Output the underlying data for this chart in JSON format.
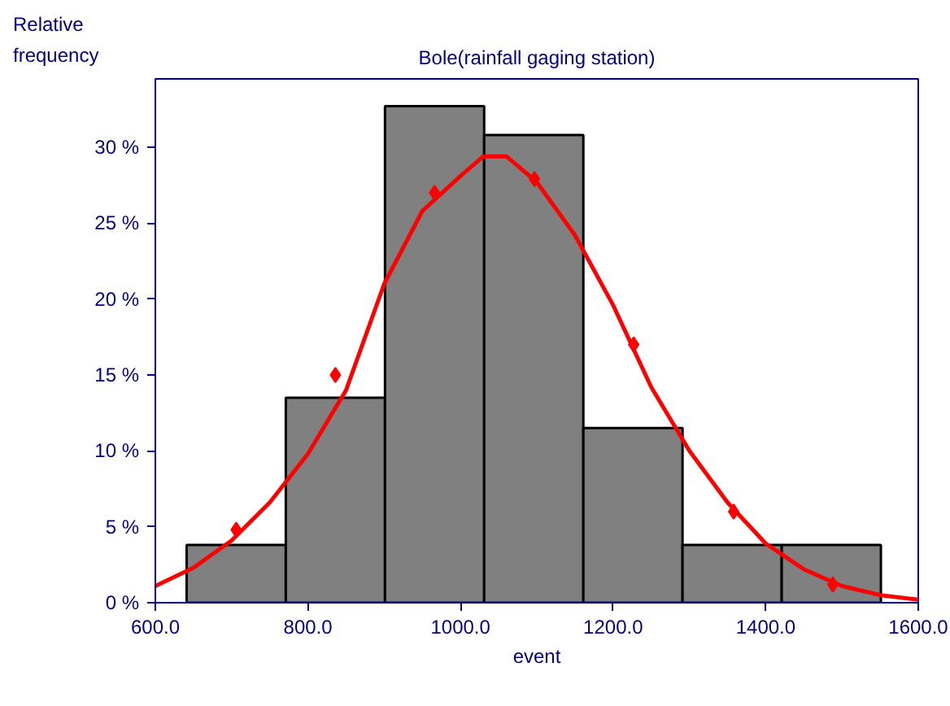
{
  "chart_data": {
    "type": "histogram",
    "title": "Bole(rainfall gaging station)",
    "xlabel": "event",
    "ylabel": "Relative frequency",
    "series": [
      {
        "color": "#808080",
        "bins": [
          641,
          771,
          901,
          1031,
          1161,
          1291,
          1421,
          1551
        ],
        "values": [
          3.8,
          13.5,
          32.7,
          30.8,
          11.5,
          3.8,
          3.8
        ]
      },
      {
        "type": "line",
        "color": "#ff0000",
        "x": [
          600,
          650,
          700,
          750,
          800,
          850,
          900,
          950,
          1000,
          1030,
          1060,
          1100,
          1150,
          1200,
          1250,
          1300,
          1350,
          1400,
          1450,
          1500,
          1550,
          1600
        ],
        "values": [
          1.1,
          2.3,
          4.1,
          6.6,
          9.8,
          14.0,
          21.0,
          25.8,
          28.1,
          29.4,
          29.4,
          27.7,
          24.2,
          19.6,
          14.2,
          10.0,
          6.6,
          3.9,
          2.2,
          1.1,
          0.5,
          0.2
        ],
        "marker": "none"
      },
      {
        "type": "scatter",
        "color": "#ff0000",
        "x": [
          706,
          836,
          966,
          1097,
          1227,
          1358,
          1488
        ],
        "values": [
          4.8,
          15.0,
          27.0,
          27.9,
          17.0,
          6.0,
          1.2
        ],
        "marker": "diamond"
      }
    ],
    "xlim": [
      600,
      1600
    ],
    "ylim": [
      0,
      34.5
    ],
    "xticks": [
      {
        "value": 600,
        "label": "600.0"
      },
      {
        "value": 800,
        "label": "800.0"
      },
      {
        "value": 1000,
        "label": "1000.0"
      },
      {
        "value": 1200,
        "label": "1200.0"
      },
      {
        "value": 1400,
        "label": "1400.0"
      },
      {
        "value": 1600,
        "label": "1600.0"
      }
    ],
    "yticks": [
      {
        "value": 0,
        "label": "0 %"
      },
      {
        "value": 5,
        "label": "5 %"
      },
      {
        "value": 10,
        "label": "10 %"
      },
      {
        "value": 15,
        "label": "15 %"
      },
      {
        "value": 20,
        "label": "20 %"
      },
      {
        "value": 25,
        "label": "25 %"
      },
      {
        "value": 30,
        "label": "30 %"
      }
    ],
    "grid": false
  }
}
